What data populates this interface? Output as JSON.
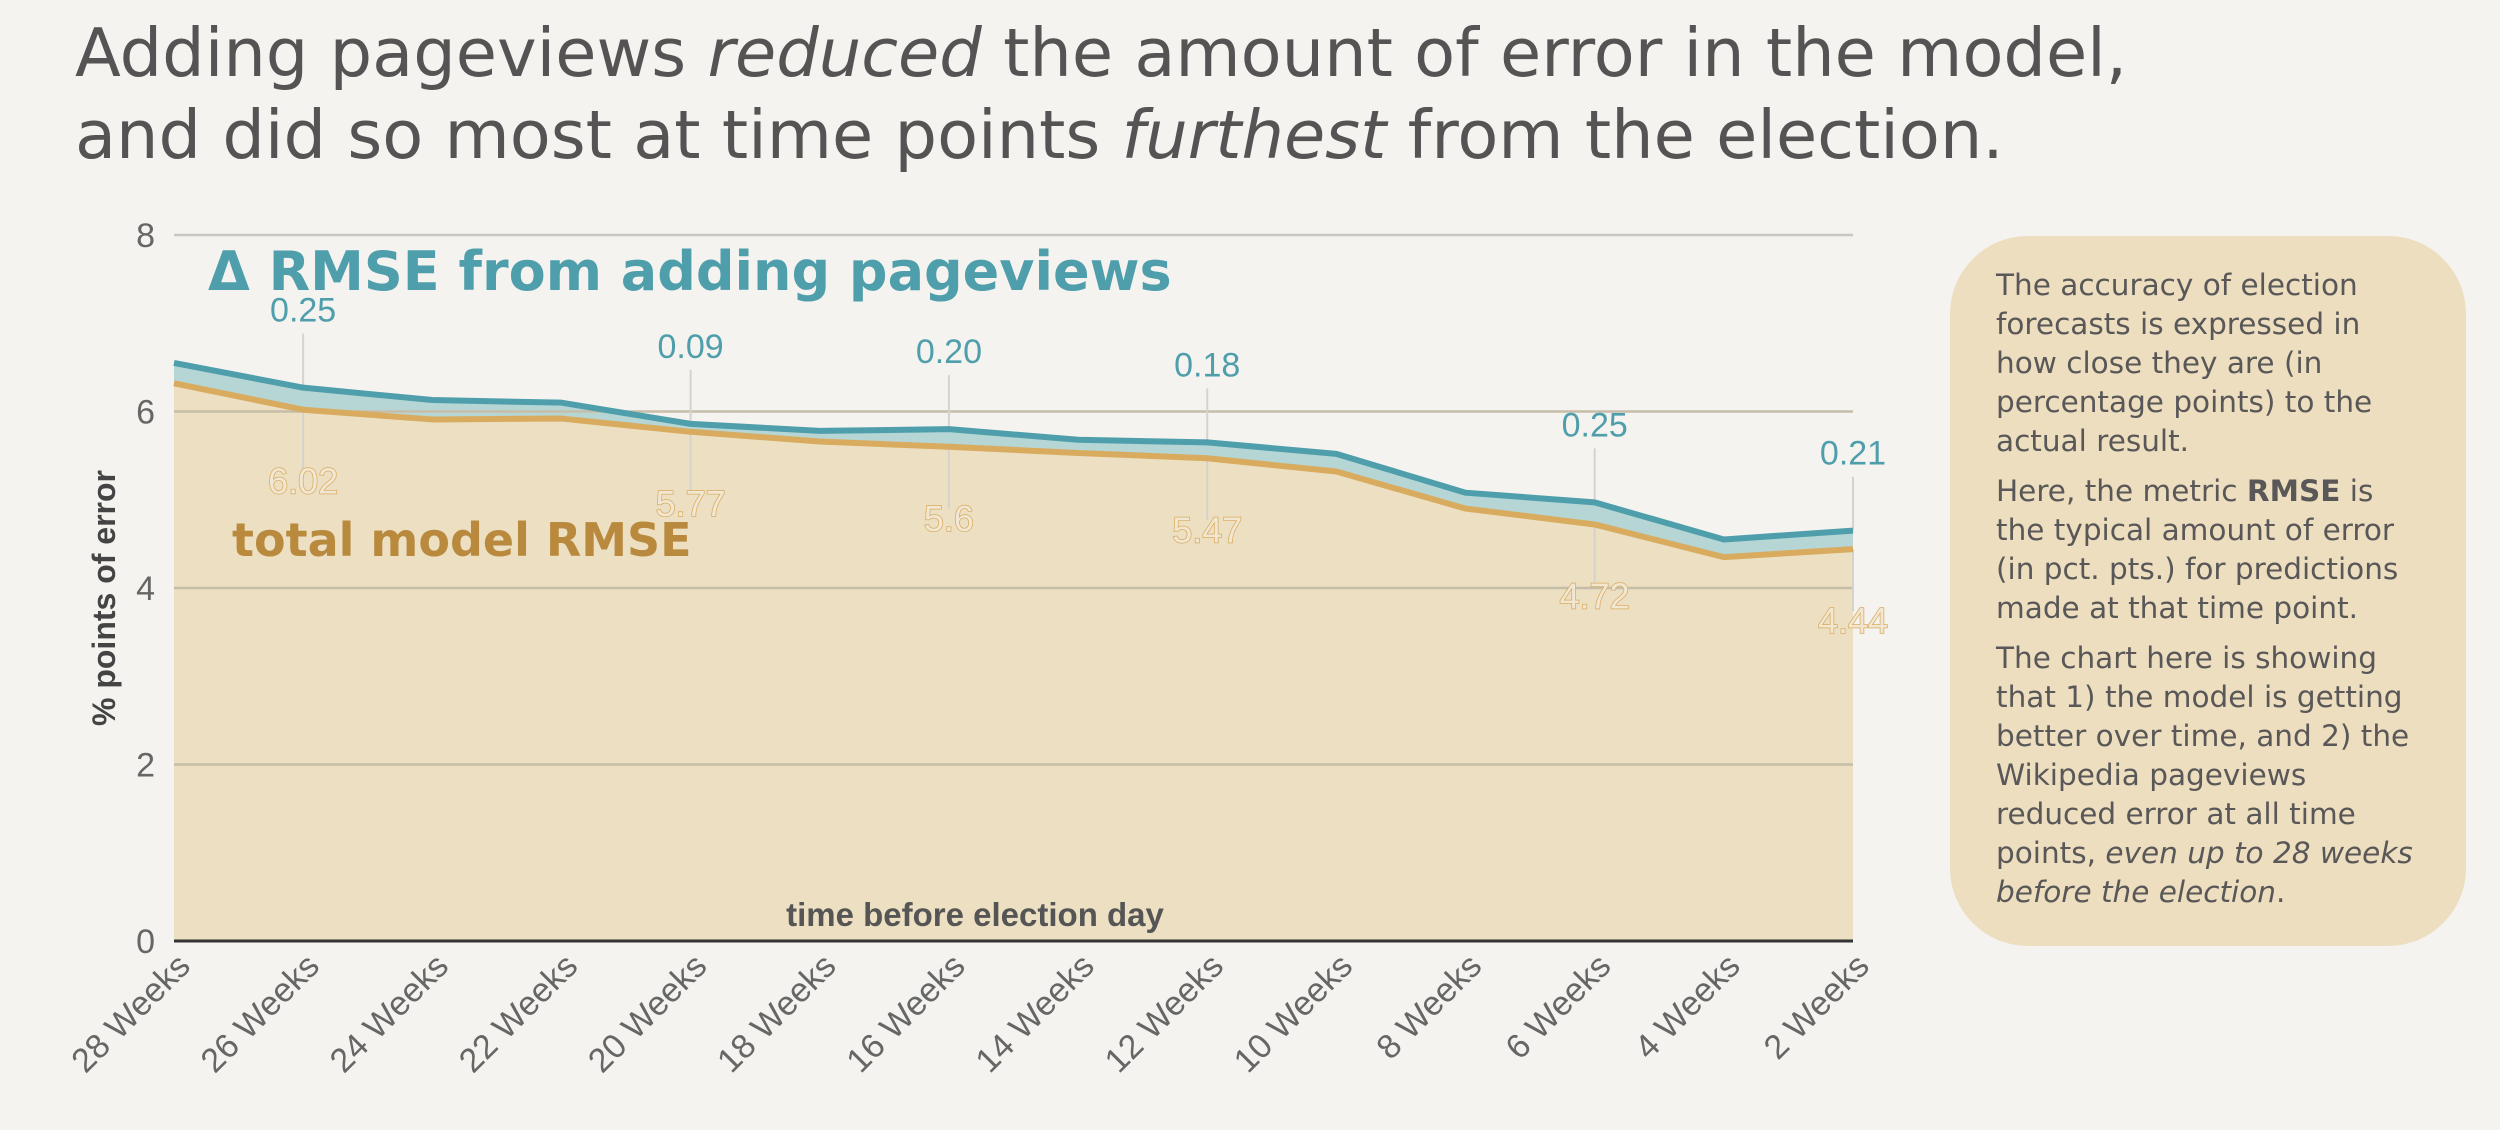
{
  "headline": {
    "line1_pre": "Adding pageviews ",
    "line1_em": "reduced",
    "line1_post": " the amount of error in the model,",
    "line2_pre": "and did so most at time points ",
    "line2_em": "furthest",
    "line2_post": " from the election."
  },
  "note": {
    "p1": "The accuracy of election forecasts is expressed in how close they are (in percentage points) to the actual result.",
    "p2_pre": "Here, the metric ",
    "p2_bold": "RMSE",
    "p2_post": " is the typical amount of error (in pct. pts.) for predictions made at that time point.",
    "p3_pre": "The chart here is showing that 1) the model is getting better over time, and 2) the Wikipedia pageviews reduced error at all time points, ",
    "p3_em": "even up to 28 weeks before the election",
    "p3_post": "."
  },
  "chart_data": {
    "type": "area",
    "xlabel": "time before election day",
    "ylabel": "% points of error",
    "ylim": [
      0,
      8
    ],
    "yticks": [
      "0",
      "2",
      "4",
      "6",
      "8"
    ],
    "grid": true,
    "categories": [
      "28 Weeks",
      "26 Weeks",
      "24 Weeks",
      "22 Weeks",
      "20 Weeks",
      "18 Weeks",
      "16 Weeks",
      "14 Weeks",
      "12 Weeks",
      "10 Weeks",
      "8 Weeks",
      "6 Weeks",
      "4 Weeks",
      "2 Weeks"
    ],
    "series": [
      {
        "name": "total model RMSE",
        "color": "#d9ab5f",
        "fill": "#ecdfc2",
        "values": [
          6.32,
          6.02,
          5.91,
          5.92,
          5.77,
          5.66,
          5.6,
          5.53,
          5.47,
          5.32,
          4.9,
          4.72,
          4.35,
          4.44
        ]
      },
      {
        "name": "Δ RMSE from adding pageviews",
        "color": "#4f9eab",
        "fill": "#b5d6d5",
        "values": [
          0.23,
          0.25,
          0.22,
          0.18,
          0.09,
          0.12,
          0.2,
          0.15,
          0.18,
          0.2,
          0.18,
          0.25,
          0.2,
          0.21
        ]
      }
    ],
    "annotations": [
      {
        "index": 1,
        "delta": "0.25",
        "total": "6.02"
      },
      {
        "index": 4,
        "delta": "0.09",
        "total": "5.77"
      },
      {
        "index": 6,
        "delta": "0.20",
        "total": "5.6"
      },
      {
        "index": 8,
        "delta": "0.18",
        "total": "5.47"
      },
      {
        "index": 11,
        "delta": "0.25",
        "total": "4.72"
      },
      {
        "index": 13,
        "delta": "0.21",
        "total": "4.44"
      }
    ]
  }
}
